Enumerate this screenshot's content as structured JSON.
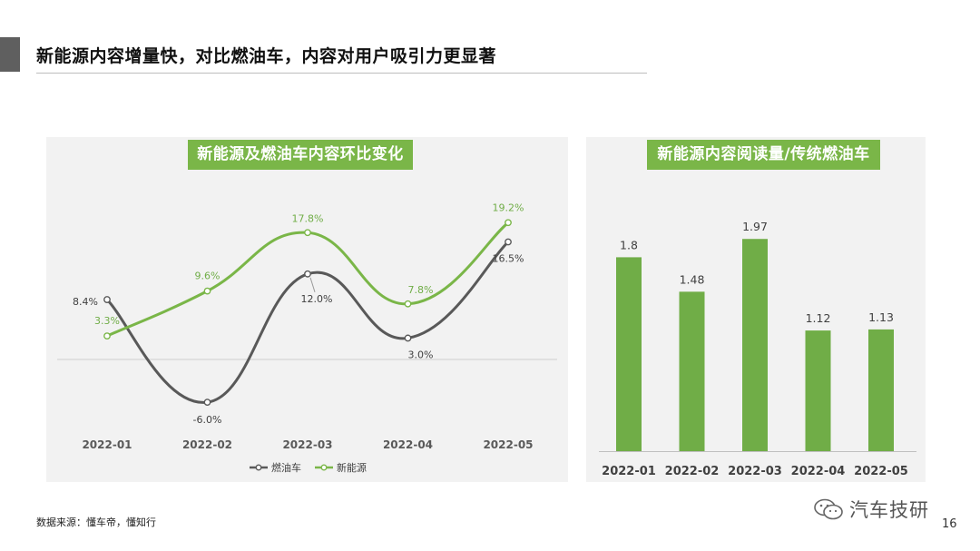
{
  "page": {
    "title": "新能源内容增量快，对比燃油车，内容对用户吸引力更显著",
    "source": "数据来源：懂车帝，懂知行",
    "brand": "汽车技研",
    "page_number": "16"
  },
  "chart_data": [
    {
      "type": "line",
      "title": "新能源及燃油车内容环比变化",
      "categories": [
        "2022-01",
        "2022-02",
        "2022-03",
        "2022-04",
        "2022-05"
      ],
      "series": [
        {
          "name": "燃油车",
          "color": "#595959",
          "values": [
            8.4,
            -6.0,
            12.0,
            3.0,
            16.5
          ],
          "labels": [
            "8.4%",
            "-6.0%",
            "12.0%",
            "3.0%",
            "16.5%"
          ]
        },
        {
          "name": "新能源",
          "color": "#7ab648",
          "values": [
            3.3,
            9.6,
            17.8,
            7.8,
            19.2
          ],
          "labels": [
            "3.3%",
            "9.6%",
            "17.8%",
            "7.8%",
            "19.2%"
          ]
        }
      ],
      "ylim": [
        -10,
        25
      ],
      "grid": false,
      "legend": "bottom"
    },
    {
      "type": "bar",
      "title": "新能源内容阅读量/传统燃油车",
      "categories": [
        "2022-01",
        "2022-02",
        "2022-03",
        "2022-04",
        "2022-05"
      ],
      "values": [
        1.8,
        1.48,
        1.97,
        1.12,
        1.13
      ],
      "labels": [
        "1.8",
        "1.48",
        "1.97",
        "1.12",
        "1.13"
      ],
      "color": "#70ad47",
      "ylim": [
        0,
        2.25
      ]
    }
  ]
}
